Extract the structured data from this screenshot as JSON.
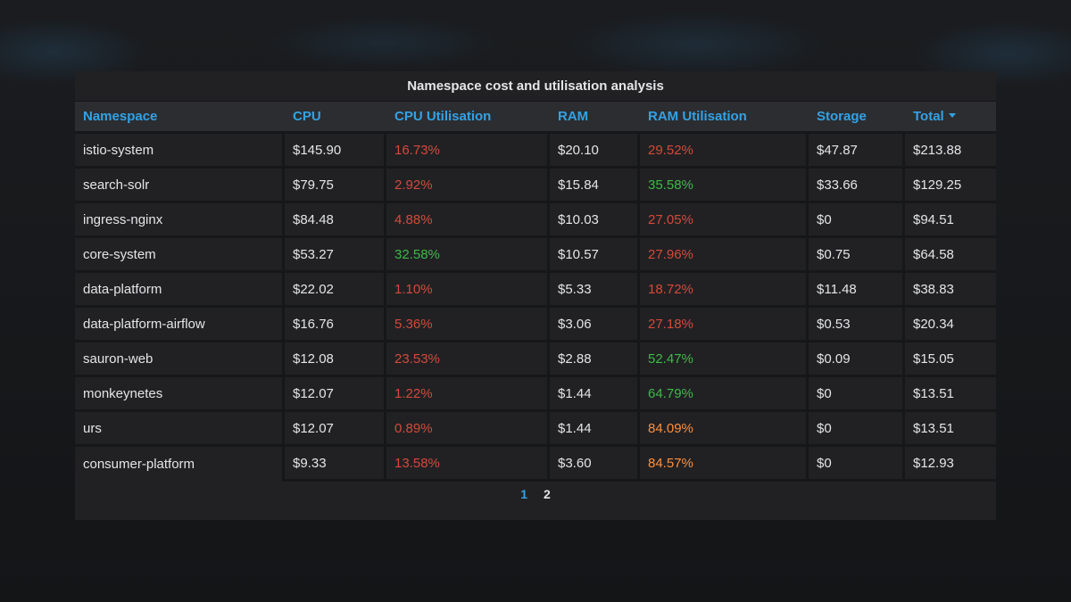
{
  "panel": {
    "title": "Namespace cost and utilisation analysis"
  },
  "colors": {
    "header_text": "#33a2e5",
    "bad": "#d44a3a",
    "good": "#3fb948",
    "warn": "#ff8f3a",
    "panel_bg": "#212124",
    "page_bg": "#161719"
  },
  "table": {
    "columns": [
      "Namespace",
      "CPU",
      "CPU Utilisation",
      "RAM",
      "RAM Utilisation",
      "Storage",
      "Total"
    ],
    "sort_column": "Total",
    "sort_direction": "desc",
    "sort_icon": "caret-down-icon",
    "rows": [
      {
        "namespace": "istio-system",
        "cpu": "$145.90",
        "cpu_util": "16.73%",
        "cpu_util_status": "red",
        "ram": "$20.10",
        "ram_util": "29.52%",
        "ram_util_status": "red",
        "storage": "$47.87",
        "total": "$213.88"
      },
      {
        "namespace": "search-solr",
        "cpu": "$79.75",
        "cpu_util": "2.92%",
        "cpu_util_status": "red",
        "ram": "$15.84",
        "ram_util": "35.58%",
        "ram_util_status": "green",
        "storage": "$33.66",
        "total": "$129.25"
      },
      {
        "namespace": "ingress-nginx",
        "cpu": "$84.48",
        "cpu_util": "4.88%",
        "cpu_util_status": "red",
        "ram": "$10.03",
        "ram_util": "27.05%",
        "ram_util_status": "red",
        "storage": "$0",
        "total": "$94.51"
      },
      {
        "namespace": "core-system",
        "cpu": "$53.27",
        "cpu_util": "32.58%",
        "cpu_util_status": "green",
        "ram": "$10.57",
        "ram_util": "27.96%",
        "ram_util_status": "red",
        "storage": "$0.75",
        "total": "$64.58"
      },
      {
        "namespace": "data-platform",
        "cpu": "$22.02",
        "cpu_util": "1.10%",
        "cpu_util_status": "red",
        "ram": "$5.33",
        "ram_util": "18.72%",
        "ram_util_status": "red",
        "storage": "$11.48",
        "total": "$38.83"
      },
      {
        "namespace": "data-platform-airflow",
        "cpu": "$16.76",
        "cpu_util": "5.36%",
        "cpu_util_status": "red",
        "ram": "$3.06",
        "ram_util": "27.18%",
        "ram_util_status": "red",
        "storage": "$0.53",
        "total": "$20.34"
      },
      {
        "namespace": "sauron-web",
        "cpu": "$12.08",
        "cpu_util": "23.53%",
        "cpu_util_status": "red",
        "ram": "$2.88",
        "ram_util": "52.47%",
        "ram_util_status": "green",
        "storage": "$0.09",
        "total": "$15.05"
      },
      {
        "namespace": "monkeynetes",
        "cpu": "$12.07",
        "cpu_util": "1.22%",
        "cpu_util_status": "red",
        "ram": "$1.44",
        "ram_util": "64.79%",
        "ram_util_status": "green",
        "storage": "$0",
        "total": "$13.51"
      },
      {
        "namespace": "urs",
        "cpu": "$12.07",
        "cpu_util": "0.89%",
        "cpu_util_status": "red",
        "ram": "$1.44",
        "ram_util": "84.09%",
        "ram_util_status": "orange",
        "storage": "$0",
        "total": "$13.51"
      },
      {
        "namespace": "consumer-platform",
        "cpu": "$9.33",
        "cpu_util": "13.58%",
        "cpu_util_status": "red",
        "ram": "$3.60",
        "ram_util": "84.57%",
        "ram_util_status": "orange",
        "storage": "$0",
        "total": "$12.93"
      }
    ]
  },
  "pagination": {
    "pages": [
      "1",
      "2"
    ],
    "current": "1"
  }
}
